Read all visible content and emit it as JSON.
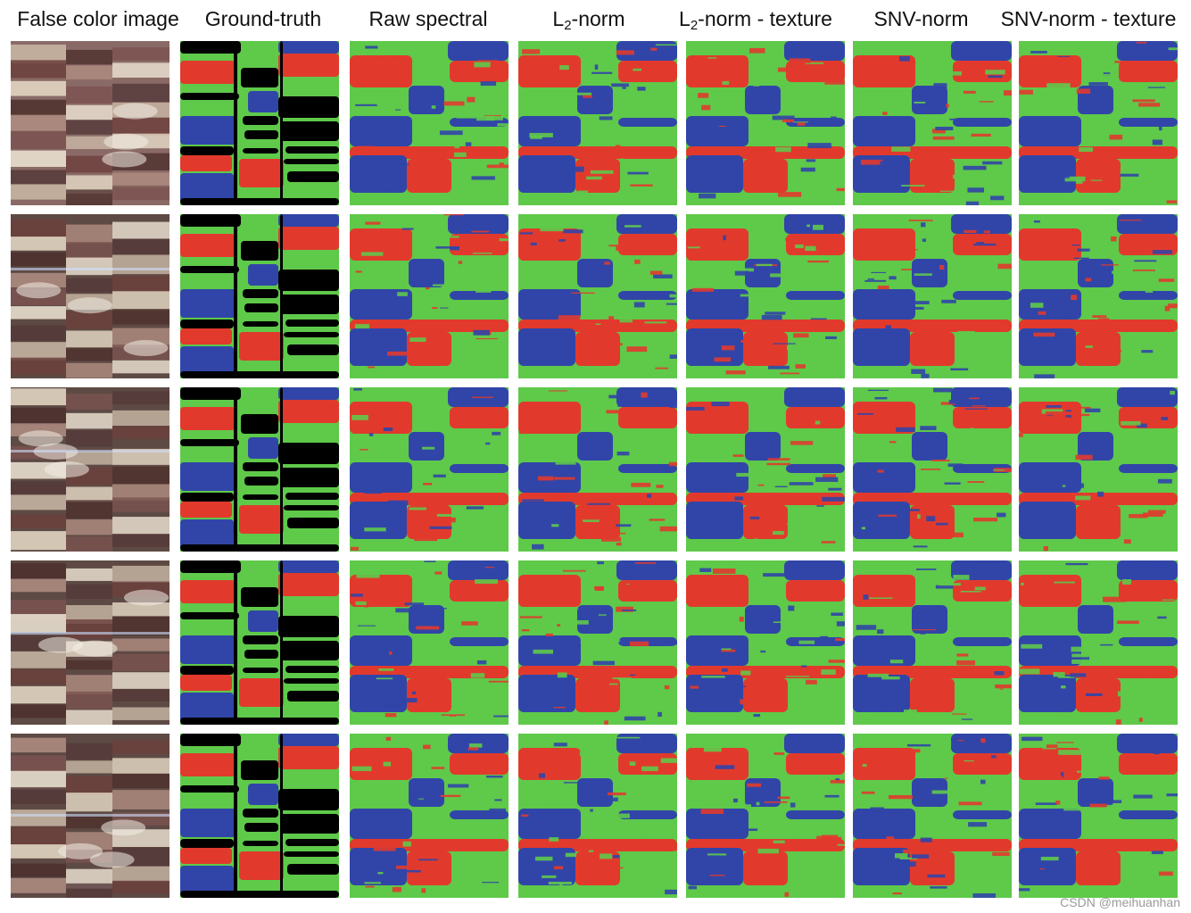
{
  "figure": {
    "columns": [
      {
        "id": "false-color",
        "label": "False color image",
        "kind": "photo"
      },
      {
        "id": "ground-truth",
        "label": "Ground-truth",
        "kind": "mask"
      },
      {
        "id": "raw-spectral",
        "label": "Raw spectral",
        "kind": "map"
      },
      {
        "id": "l2-norm",
        "label_main": "L",
        "label_sub": "2",
        "label_rest": "-norm",
        "kind": "map"
      },
      {
        "id": "l2-norm-texture",
        "label_main": "L",
        "label_sub": "2",
        "label_rest": "-norm - texture",
        "kind": "map"
      },
      {
        "id": "snv-norm",
        "label": "SNV-norm",
        "kind": "map"
      },
      {
        "id": "snv-norm-texture",
        "label": "SNV-norm - texture",
        "kind": "map"
      }
    ],
    "rows": 5,
    "palette": {
      "green": "#5fc94a",
      "red": "#e13a2d",
      "blue": "#3145a8",
      "black": "#000000"
    }
  },
  "watermark": "CSDN @meihuanhan"
}
